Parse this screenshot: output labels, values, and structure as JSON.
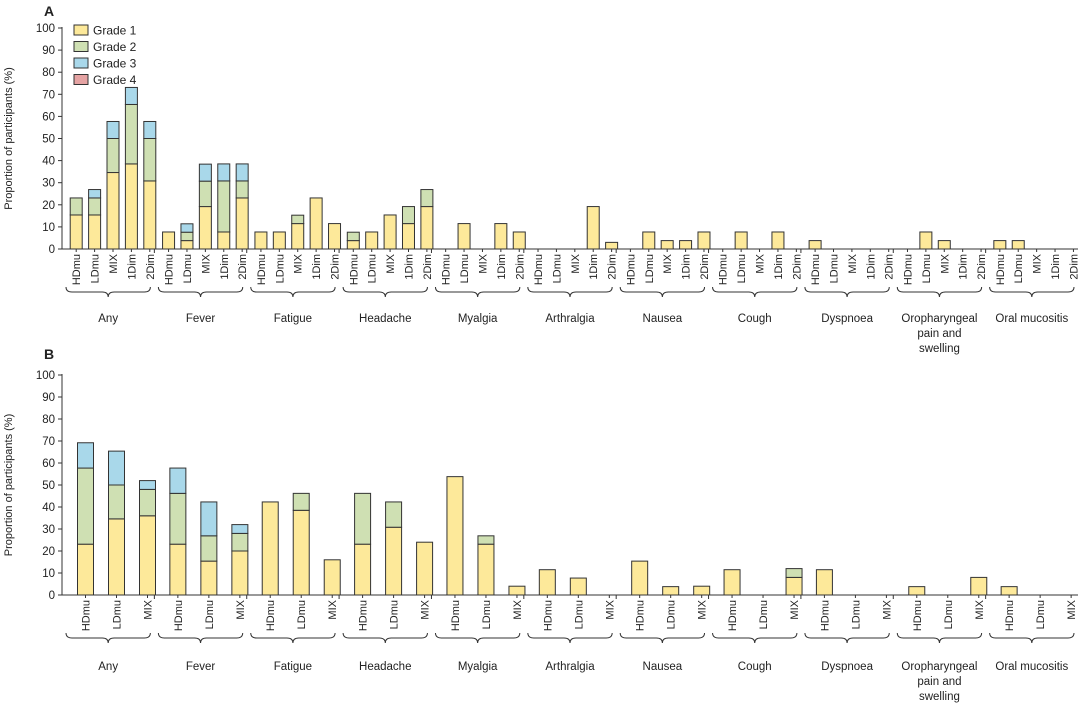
{
  "colors": {
    "grade1": "#fde99a",
    "grade2": "#cfe0b3",
    "grade3": "#a9d8ea",
    "grade4": "#e5a3a3",
    "axis": "#333333"
  },
  "legend": [
    "Grade 1",
    "Grade 2",
    "Grade 3",
    "Grade 4"
  ],
  "chart_data": [
    {
      "type": "bar",
      "stacked": true,
      "panel_label": "A",
      "ylabel": "Proportion of participants (%)",
      "ylim": [
        0,
        100
      ],
      "yticks": [
        0,
        10,
        20,
        30,
        40,
        50,
        60,
        70,
        80,
        90,
        100
      ],
      "groups": [
        "Any",
        "Fever",
        "Fatigue",
        "Headache",
        "Myalgia",
        "Arthralgia",
        "Nausea",
        "Cough",
        "Dyspnoea",
        "Oropharyngeal pain and swelling",
        "Oral mucositis"
      ],
      "categories": [
        "HDmu",
        "LDmu",
        "MIX",
        "1Dim",
        "2Dim"
      ],
      "series": [
        {
          "name": "Grade 1",
          "values": [
            [
              15.4,
              15.4,
              34.6,
              38.5,
              30.8
            ],
            [
              7.7,
              3.8,
              19.2,
              7.7,
              23.1
            ],
            [
              7.7,
              7.7,
              11.5,
              23.1,
              11.5
            ],
            [
              3.8,
              7.7,
              15.4,
              11.5,
              19.2
            ],
            [
              0,
              11.5,
              0,
              11.5,
              7.7
            ],
            [
              0,
              0,
              0,
              19.2,
              3.0
            ],
            [
              0,
              7.7,
              3.8,
              3.8,
              7.7
            ],
            [
              0,
              7.7,
              0,
              7.7,
              0
            ],
            [
              3.8,
              0,
              0,
              0,
              0
            ],
            [
              0,
              7.7,
              3.8,
              0,
              0
            ],
            [
              3.8,
              3.8,
              0,
              0,
              0
            ]
          ]
        },
        {
          "name": "Grade 2",
          "values": [
            [
              7.7,
              7.7,
              15.4,
              26.9,
              19.2
            ],
            [
              0,
              3.8,
              11.5,
              23.1,
              7.7
            ],
            [
              0,
              0,
              3.8,
              0,
              0
            ],
            [
              3.8,
              0,
              0,
              7.7,
              7.7
            ],
            [
              0,
              0,
              0,
              0,
              0
            ],
            [
              0,
              0,
              0,
              0,
              0
            ],
            [
              0,
              0,
              0,
              0,
              0
            ],
            [
              0,
              0,
              0,
              0,
              0
            ],
            [
              0,
              0,
              0,
              0,
              0
            ],
            [
              0,
              0,
              0,
              0,
              0
            ],
            [
              0,
              0,
              0,
              0,
              0
            ]
          ]
        },
        {
          "name": "Grade 3",
          "values": [
            [
              0,
              3.8,
              7.7,
              7.7,
              7.7
            ],
            [
              0,
              3.8,
              7.7,
              7.7,
              7.7
            ],
            [
              0,
              0,
              0,
              0,
              0
            ],
            [
              0,
              0,
              0,
              0,
              0
            ],
            [
              0,
              0,
              0,
              0,
              0
            ],
            [
              0,
              0,
              0,
              0,
              0
            ],
            [
              0,
              0,
              0,
              0,
              0
            ],
            [
              0,
              0,
              0,
              0,
              0
            ],
            [
              0,
              0,
              0,
              0,
              0
            ],
            [
              0,
              0,
              0,
              0,
              0
            ],
            [
              0,
              0,
              0,
              0,
              0
            ]
          ]
        },
        {
          "name": "Grade 4",
          "values": [
            [
              0,
              0,
              0,
              0,
              0
            ],
            [
              0,
              0,
              0,
              0,
              0
            ],
            [
              0,
              0,
              0,
              0,
              0
            ],
            [
              0,
              0,
              0,
              0,
              0
            ],
            [
              0,
              0,
              0,
              0,
              0
            ],
            [
              0,
              0,
              0,
              0,
              0
            ],
            [
              0,
              0,
              0,
              0,
              0
            ],
            [
              0,
              0,
              0,
              0,
              0
            ],
            [
              0,
              0,
              0,
              0,
              0
            ],
            [
              0,
              0,
              0,
              0,
              0
            ],
            [
              0,
              0,
              0,
              0,
              0
            ]
          ]
        }
      ]
    },
    {
      "type": "bar",
      "stacked": true,
      "panel_label": "B",
      "ylabel": "Proportion of participants (%)",
      "ylim": [
        0,
        100
      ],
      "yticks": [
        0,
        10,
        20,
        30,
        40,
        50,
        60,
        70,
        80,
        90,
        100
      ],
      "groups": [
        "Any",
        "Fever",
        "Fatigue",
        "Headache",
        "Myalgia",
        "Arthralgia",
        "Nausea",
        "Cough",
        "Dyspnoea",
        "Oropharyngeal pain and swelling",
        "Oral mucositis"
      ],
      "categories": [
        "HDmu",
        "LDmu",
        "MIX"
      ],
      "series": [
        {
          "name": "Grade 1",
          "values": [
            [
              23.1,
              34.6,
              36.0
            ],
            [
              23.1,
              15.4,
              20.0
            ],
            [
              42.3,
              38.5,
              16.0
            ],
            [
              23.1,
              30.8,
              24.0
            ],
            [
              53.8,
              23.1,
              4.0
            ],
            [
              11.5,
              7.7,
              0
            ],
            [
              15.4,
              3.8,
              4.0
            ],
            [
              11.5,
              0,
              8.0
            ],
            [
              11.5,
              0,
              0
            ],
            [
              3.8,
              0,
              8.0
            ],
            [
              3.8,
              0,
              0
            ]
          ]
        },
        {
          "name": "Grade 2",
          "values": [
            [
              34.6,
              15.4,
              12.0
            ],
            [
              23.1,
              11.5,
              8.0
            ],
            [
              0,
              7.7,
              0
            ],
            [
              23.1,
              11.5,
              0
            ],
            [
              0,
              3.8,
              0
            ],
            [
              0,
              0,
              0
            ],
            [
              0,
              0,
              0
            ],
            [
              0,
              0,
              4.0
            ],
            [
              0,
              0,
              0
            ],
            [
              0,
              0,
              0
            ],
            [
              0,
              0,
              0
            ]
          ]
        },
        {
          "name": "Grade 3",
          "values": [
            [
              11.5,
              15.4,
              4.0
            ],
            [
              11.5,
              15.4,
              4.0
            ],
            [
              0,
              0,
              0
            ],
            [
              0,
              0,
              0
            ],
            [
              0,
              0,
              0
            ],
            [
              0,
              0,
              0
            ],
            [
              0,
              0,
              0
            ],
            [
              0,
              0,
              0
            ],
            [
              0,
              0,
              0
            ],
            [
              0,
              0,
              0
            ],
            [
              0,
              0,
              0
            ]
          ]
        },
        {
          "name": "Grade 4",
          "values": [
            [
              0,
              0,
              0
            ],
            [
              0,
              0,
              0
            ],
            [
              0,
              0,
              0
            ],
            [
              0,
              0,
              0
            ],
            [
              0,
              0,
              0
            ],
            [
              0,
              0,
              0
            ],
            [
              0,
              0,
              0
            ],
            [
              0,
              0,
              0
            ],
            [
              0,
              0,
              0
            ],
            [
              0,
              0,
              0
            ],
            [
              0,
              0,
              0
            ]
          ]
        }
      ]
    }
  ]
}
